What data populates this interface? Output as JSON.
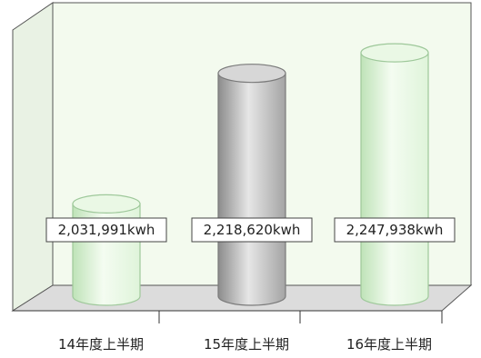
{
  "chart_data": {
    "type": "bar",
    "title": "",
    "xlabel": "",
    "ylabel": "",
    "categories": [
      "14年度上半期",
      "15年度上半期",
      "16年度上半期"
    ],
    "series": [
      {
        "values": [
          2031991,
          2218620,
          2247938
        ],
        "labels": [
          "2,031,991kwh",
          "2,218,620kwh",
          "2,247,938kwh"
        ]
      }
    ],
    "bar_colors": [
      "#dff4da",
      "#c9c9c9",
      "#dff4da"
    ],
    "bar_edge_colors": [
      "#9ec89a",
      "#7a7a7a",
      "#9ec89a"
    ],
    "panel_color": "#f2faec",
    "ylim": [
      1900000,
      2300000
    ],
    "grid": false,
    "legend": "none"
  }
}
